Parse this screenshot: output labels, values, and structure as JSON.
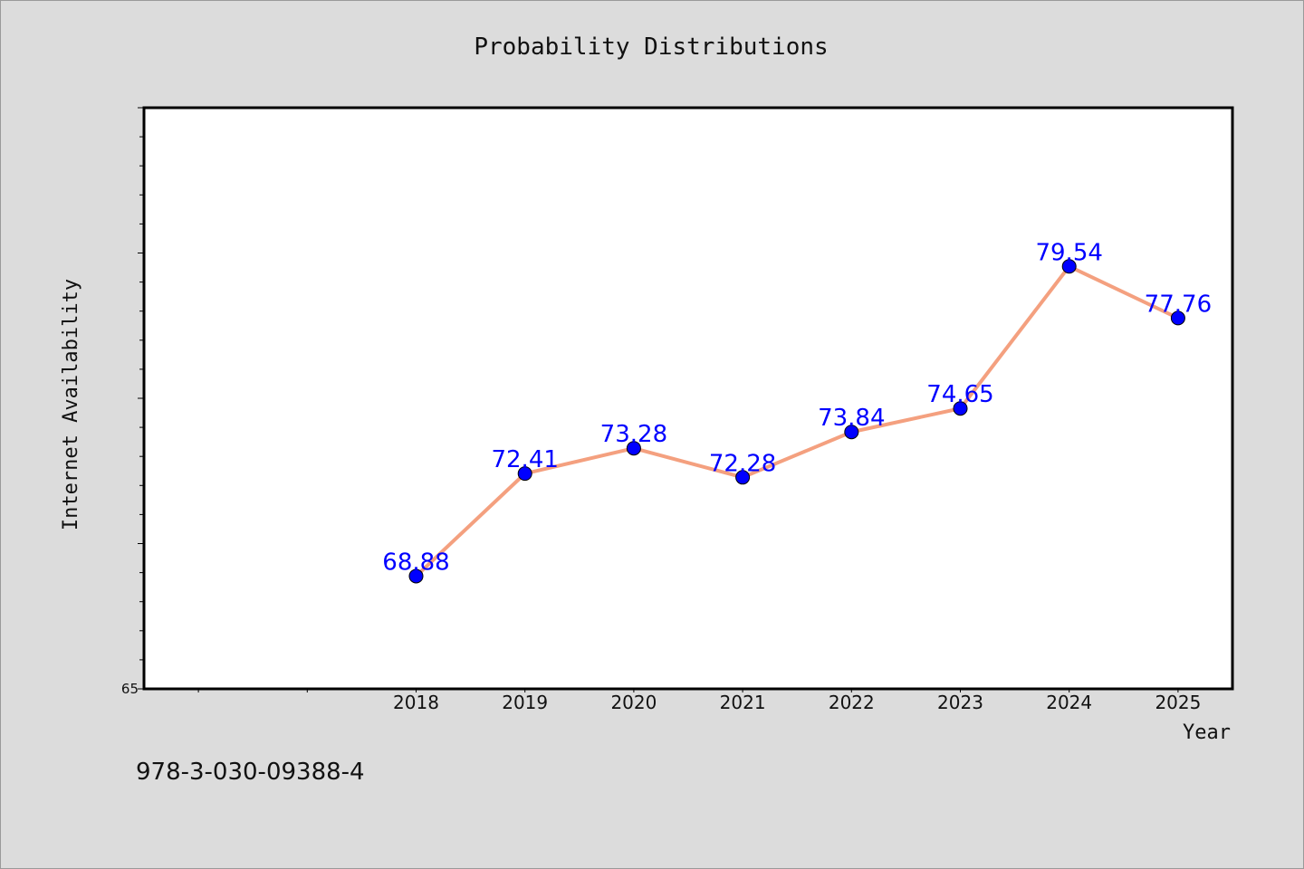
{
  "chart_data": {
    "type": "line",
    "title": "Probability Distributions",
    "xlabel": "Year",
    "ylabel": "Internet Availability",
    "categories": [
      "2018",
      "2019",
      "2020",
      "2021",
      "2022",
      "2023",
      "2024",
      "2025"
    ],
    "series": [
      {
        "values": [
          68.88,
          72.41,
          73.28,
          72.28,
          73.84,
          74.65,
          79.54,
          77.76
        ],
        "data_labels": [
          "68.88",
          "72.41",
          "73.28",
          "72.28",
          "73.84",
          "74.65",
          "79.54",
          "77.76"
        ],
        "line_color": "#f4a07f",
        "marker_color": "#0000ff"
      }
    ],
    "ylim": [
      65,
      85
    ],
    "y_tick_labels": [
      "65"
    ],
    "xlim": [
      2015.5,
      2025.5
    ],
    "grid": false,
    "legend": "none"
  },
  "footer": {
    "isbn": "978-3-030-09388-4"
  }
}
